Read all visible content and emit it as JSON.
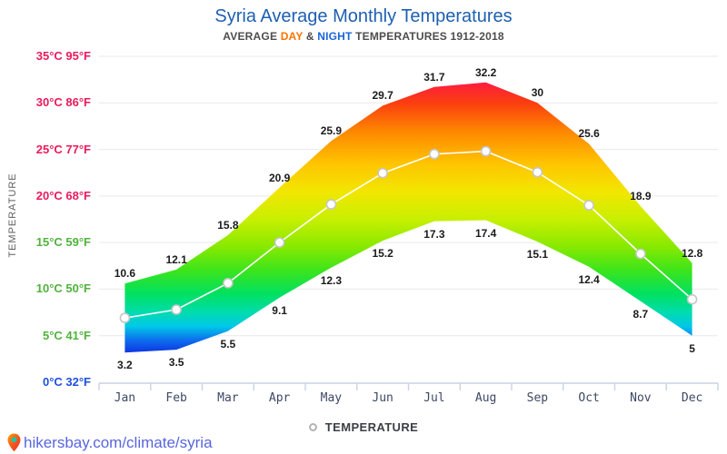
{
  "page": {
    "title": "Syria Average Monthly Temperatures",
    "subtitle": {
      "prefix": "AVERAGE ",
      "day": "DAY",
      "amp": " & ",
      "night": "NIGHT",
      "suffix": " TEMPERATURES 1912-2018"
    },
    "y_axis_title": "TEMPERATURE",
    "legend_label": "TEMPERATURE",
    "footer_url": "hikersbay.com/climate/syria"
  },
  "colors": {
    "title": "#1e5fb1",
    "subtitle_day": "#ff7300",
    "subtitle_night": "#1a65d8",
    "gridline": "#e9e9e9",
    "axis": "#c9d3e4",
    "avg_line": "#ffffff",
    "marker_stroke": "#c6c6c6",
    "ytick_hot": "#ea1a5c",
    "ytick_mild": "#4fb33c",
    "ytick_cold": "#1f4fe0"
  },
  "chart_data": {
    "type": "area",
    "title": "Syria Average Monthly Temperatures",
    "subtitle": "AVERAGE DAY & NIGHT TEMPERATURES 1912-2018",
    "ylabel": "TEMPERATURE",
    "ylim": [
      0,
      35
    ],
    "grid": true,
    "legend_position": "bottom",
    "categories": [
      "Jan",
      "Feb",
      "Mar",
      "Apr",
      "May",
      "Jun",
      "Jul",
      "Aug",
      "Sep",
      "Oct",
      "Nov",
      "Dec"
    ],
    "series": [
      {
        "name": "DAY",
        "values": [
          10.6,
          12.1,
          15.8,
          20.9,
          25.9,
          29.7,
          31.7,
          32.2,
          30,
          25.6,
          18.9,
          12.8
        ]
      },
      {
        "name": "NIGHT",
        "values": [
          3.2,
          3.5,
          5.5,
          9.1,
          12.3,
          15.2,
          17.3,
          17.4,
          15.1,
          12.4,
          8.7,
          5
        ]
      },
      {
        "name": "AVERAGE",
        "values": [
          6.9,
          7.8,
          10.65,
          15.0,
          19.1,
          22.45,
          24.5,
          24.8,
          22.55,
          19.0,
          13.8,
          8.9
        ]
      }
    ],
    "y_ticks": [
      {
        "t": 0,
        "label": "0°C 32°F",
        "group": "cold"
      },
      {
        "t": 5,
        "label": "5°C 41°F",
        "group": "mild"
      },
      {
        "t": 10,
        "label": "10°C 50°F",
        "group": "mild"
      },
      {
        "t": 15,
        "label": "15°C 59°F",
        "group": "mild"
      },
      {
        "t": 20,
        "label": "20°C 68°F",
        "group": "hot"
      },
      {
        "t": 25,
        "label": "25°C 77°F",
        "group": "hot"
      },
      {
        "t": 30,
        "label": "30°C 86°F",
        "group": "hot"
      },
      {
        "t": 35,
        "label": "35°C 95°F",
        "group": "hot"
      }
    ],
    "band_gradient_stops": [
      {
        "t": 33,
        "color": "#ff0f50"
      },
      {
        "t": 30,
        "color": "#fb3e10"
      },
      {
        "t": 27,
        "color": "#fd8600"
      },
      {
        "t": 23.5,
        "color": "#ffc400"
      },
      {
        "t": 20.5,
        "color": "#f2e600"
      },
      {
        "t": 17.5,
        "color": "#c8ef00"
      },
      {
        "t": 14.5,
        "color": "#86e900"
      },
      {
        "t": 12,
        "color": "#3ce41c"
      },
      {
        "t": 9.5,
        "color": "#00e160"
      },
      {
        "t": 7.5,
        "color": "#00dcae"
      },
      {
        "t": 6,
        "color": "#00c8e8"
      },
      {
        "t": 4.5,
        "color": "#0e6cee"
      },
      {
        "t": 3,
        "color": "#0d2ee0"
      }
    ]
  }
}
